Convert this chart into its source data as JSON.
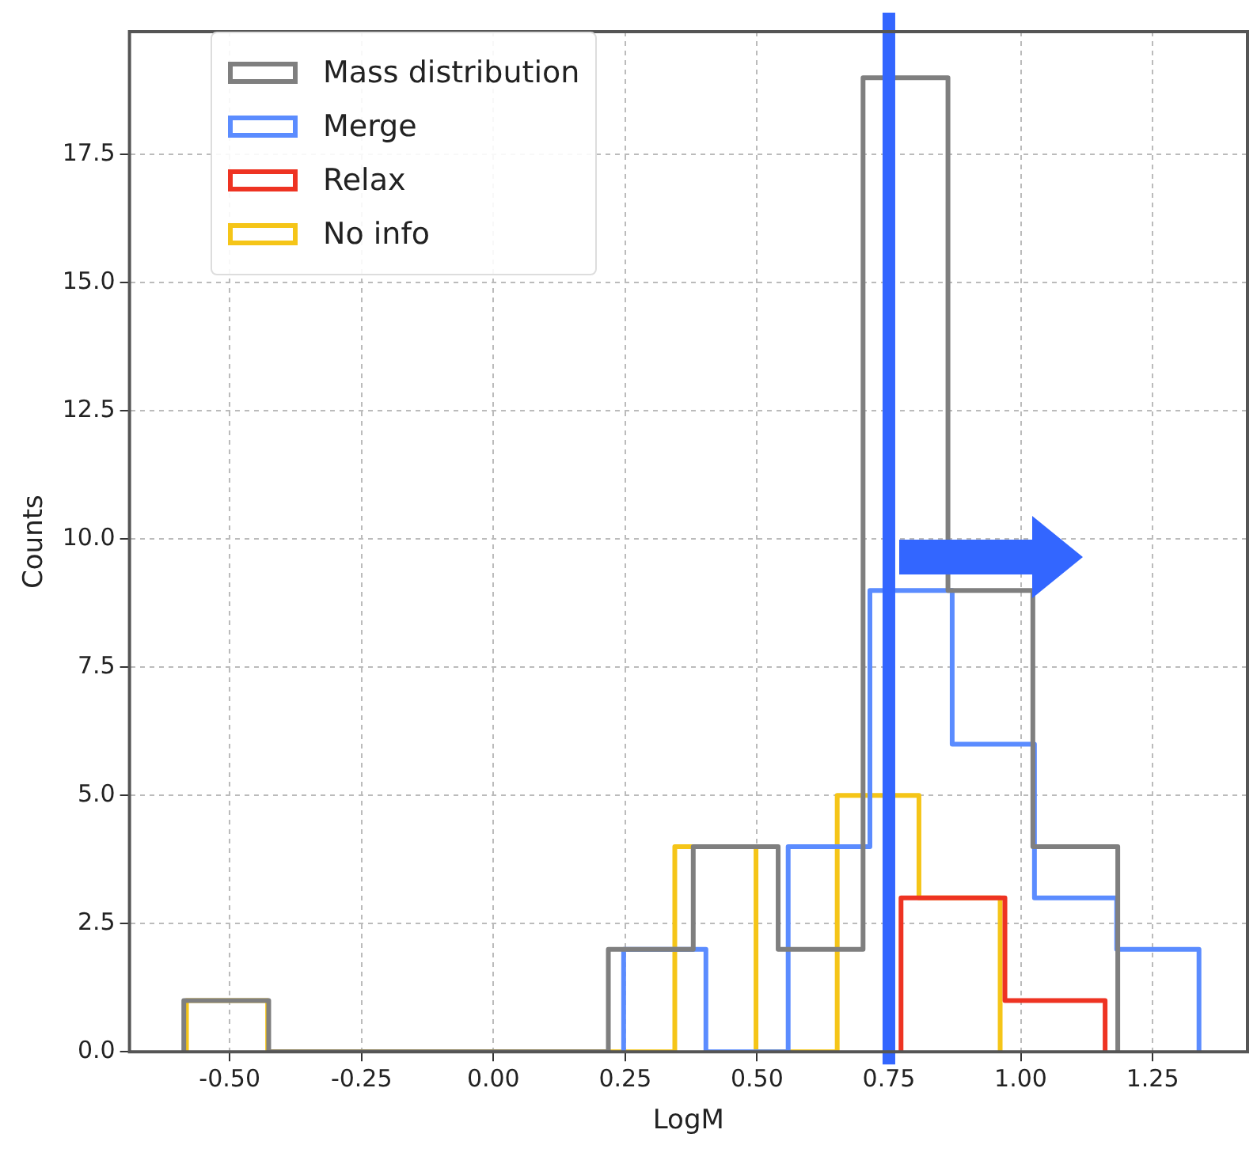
{
  "chart_data": {
    "type": "step",
    "xlabel": "LogM",
    "ylabel": "Counts",
    "series": [
      {
        "name": "Mass distribution",
        "color": "#7f7f7f",
        "x": [
          -0.587,
          -0.587,
          -0.426,
          -0.265,
          -0.104,
          0.057,
          0.218,
          0.379,
          0.54,
          0.701,
          0.862,
          1.023,
          1.184
        ],
        "values": [
          0,
          1,
          0,
          0,
          0,
          0,
          2,
          4,
          2,
          19,
          9,
          4,
          0
        ]
      },
      {
        "name": "Merge",
        "color": "#5b8cff",
        "x": [
          0.247,
          0.247,
          0.403,
          0.559,
          0.714,
          0.87,
          1.026,
          1.182,
          1.338
        ],
        "values": [
          0,
          2,
          0,
          4,
          9,
          6,
          3,
          2,
          0
        ]
      },
      {
        "name": "Relax",
        "color": "#ee3322",
        "x": [
          0.773,
          0.773,
          0.97,
          1.16
        ],
        "values": [
          0,
          3,
          1,
          0
        ]
      },
      {
        "name": "No info",
        "color": "#f5c518",
        "x": [
          -0.582,
          -0.582,
          -0.428,
          -0.273,
          -0.119,
          0.035,
          0.19,
          0.344,
          0.498,
          0.652,
          0.807,
          0.961
        ],
        "values": [
          0,
          1,
          0,
          0,
          0,
          0,
          0,
          4,
          0,
          5,
          3,
          0
        ]
      }
    ],
    "xlim": [
      -0.69,
      1.43
    ],
    "ylim": [
      0,
      19.9
    ],
    "xticks": [
      {
        "value": -0.5,
        "label": "-0.50"
      },
      {
        "value": -0.25,
        "label": "-0.25"
      },
      {
        "value": 0,
        "label": "0.00"
      },
      {
        "value": 0.25,
        "label": "0.25"
      },
      {
        "value": 0.5,
        "label": "0.50"
      },
      {
        "value": 0.75,
        "label": "0.75"
      },
      {
        "value": 1,
        "label": "1.00"
      },
      {
        "value": 1.25,
        "label": "1.25"
      }
    ],
    "yticks": [
      {
        "value": 0,
        "label": "0.0"
      },
      {
        "value": 2.5,
        "label": "2.5"
      },
      {
        "value": 5,
        "label": "5.0"
      },
      {
        "value": 7.5,
        "label": "7.5"
      },
      {
        "value": 10,
        "label": "10.0"
      },
      {
        "value": 12.5,
        "label": "12.5"
      },
      {
        "value": 15,
        "label": "15.0"
      },
      {
        "value": 17.5,
        "label": "17.5"
      }
    ],
    "ref_lines": [
      {
        "axis": "x",
        "value": 0.75,
        "color": "#3366ff"
      }
    ],
    "grid": true,
    "legend": "top left",
    "line_style": "solid"
  }
}
